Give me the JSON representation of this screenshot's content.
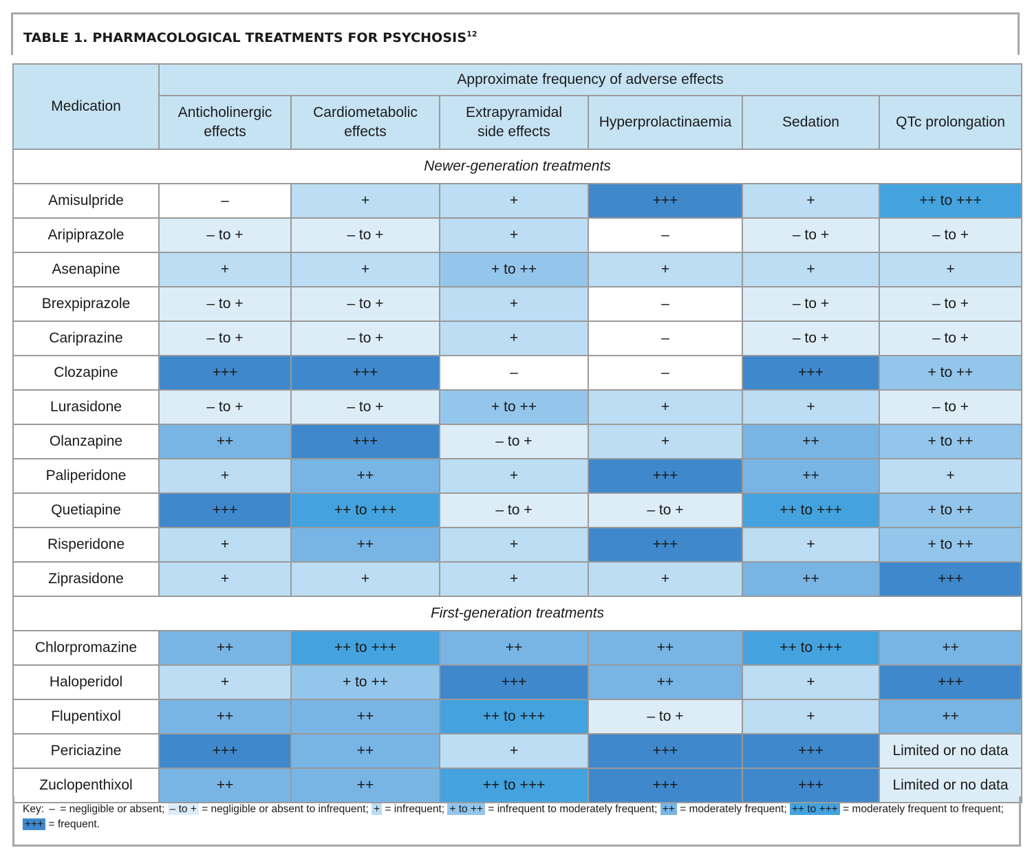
{
  "title": {
    "bold": "TABLE 1.",
    "text": "PHARMACOLOGICAL TREATMENTS FOR PSYCHOSIS",
    "sup": "12"
  },
  "header": {
    "medication": "Medication",
    "group": "Approximate frequency of adverse effects",
    "columns": [
      [
        "Anticholinergic",
        "effects"
      ],
      [
        "Cardiometabolic",
        "effects"
      ],
      [
        "Extrapyramidal",
        "side effects"
      ],
      [
        "Hyperprolactinaemia",
        ""
      ],
      [
        "Sedation",
        ""
      ],
      [
        "QTc prolongation",
        ""
      ]
    ]
  },
  "level_colors": {
    "–": "#ffffff",
    "– to +": "#ddedf8",
    "+": "#bcddf3",
    "+ to ++": "#94c6ec",
    "++": "#78b4e4",
    "++ to +++": "#44a3de",
    "+++": "#3f88cc",
    "Limited or no data": "#ddedf8"
  },
  "sections": [
    {
      "label": "Newer-generation treatments",
      "rows": [
        {
          "name": "Amisulpride",
          "values": [
            "–",
            "+",
            "+",
            "+++",
            "+",
            "++ to +++"
          ]
        },
        {
          "name": "Aripiprazole",
          "values": [
            "– to +",
            "– to +",
            "+",
            "–",
            "– to +",
            "– to +"
          ]
        },
        {
          "name": "Asenapine",
          "values": [
            "+",
            "+",
            "+ to ++",
            "+",
            "+",
            "+"
          ]
        },
        {
          "name": "Brexpiprazole",
          "values": [
            "– to +",
            "– to +",
            "+",
            "–",
            "– to +",
            "– to +"
          ]
        },
        {
          "name": "Cariprazine",
          "values": [
            "– to +",
            "– to +",
            "+",
            "–",
            "– to +",
            "– to +"
          ]
        },
        {
          "name": "Clozapine",
          "values": [
            "+++",
            "+++",
            "–",
            "–",
            "+++",
            "+ to ++"
          ]
        },
        {
          "name": "Lurasidone",
          "values": [
            "– to +",
            "– to +",
            "+ to ++",
            "+",
            "+",
            "– to +"
          ]
        },
        {
          "name": "Olanzapine",
          "values": [
            "++",
            "+++",
            "– to +",
            "+",
            "++",
            "+ to ++"
          ]
        },
        {
          "name": "Paliperidone",
          "values": [
            "+",
            "++",
            "+",
            "+++",
            "++",
            "+"
          ]
        },
        {
          "name": "Quetiapine",
          "values": [
            "+++",
            "++ to +++",
            "– to +",
            "– to +",
            "++ to +++",
            "+ to ++"
          ]
        },
        {
          "name": "Risperidone",
          "values": [
            "+",
            "++",
            "+",
            "+++",
            "+",
            "+ to ++"
          ]
        },
        {
          "name": "Ziprasidone",
          "values": [
            "+",
            "+",
            "+",
            "+",
            "++",
            "+++"
          ]
        }
      ]
    },
    {
      "label": "First-generation treatments",
      "rows": [
        {
          "name": "Chlorpromazine",
          "values": [
            "++",
            "++ to +++",
            "++",
            "++",
            "++ to +++",
            "++"
          ]
        },
        {
          "name": "Haloperidol",
          "values": [
            "+",
            "+ to ++",
            "+++",
            "++",
            "+",
            "+++"
          ]
        },
        {
          "name": "Flupentixol",
          "values": [
            "++",
            "++",
            "++ to +++",
            "– to +",
            "+",
            "++"
          ]
        },
        {
          "name": "Periciazine",
          "values": [
            "+++",
            "++",
            "+",
            "+++",
            "+++",
            "Limited or no data"
          ]
        },
        {
          "name": "Zuclopenthixol",
          "values": [
            "++",
            "++",
            "++ to +++",
            "+++",
            "+++",
            "Limited or no data"
          ]
        }
      ]
    }
  ],
  "key": {
    "prefix": "Key:",
    "items": [
      {
        "symbol": "–",
        "meaning": "negligible or absent"
      },
      {
        "symbol": "– to +",
        "meaning": "negligible or absent to infrequent"
      },
      {
        "symbol": "+",
        "meaning": "infrequent"
      },
      {
        "symbol": "+ to ++",
        "meaning": "infrequent to moderately frequent"
      },
      {
        "symbol": "++",
        "meaning": "moderately frequent"
      },
      {
        "symbol": "++ to +++",
        "meaning": "moderately frequent to frequent"
      },
      {
        "symbol": "+++",
        "meaning": "frequent"
      }
    ]
  }
}
